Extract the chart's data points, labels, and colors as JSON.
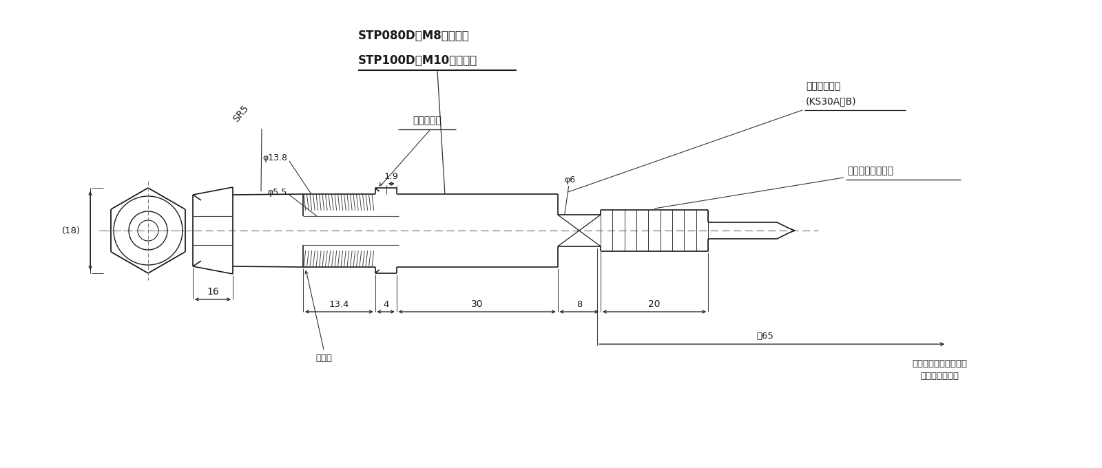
{
  "bg_color": "#ffffff",
  "lc": "#1a1a1a",
  "stp080": "STP080D：M8（並目）",
  "stp100": "STP100D：M10（並目）",
  "boot": "ブーツ保護",
  "cartridge_line1": "カートリッジ",
  "cartridge_line2": "(KS30A／B)",
  "cord": "コードプロテクタ",
  "sukima": "スキマ",
  "space1": "カートリッジ取外しに",
  "space2": "要するスペース",
  "sr5": "SR5",
  "phi138": "φ13.8",
  "phi55": "φ5.5",
  "phi6": "φ6",
  "d18": "(18)",
  "d16": "16",
  "d134": "13.4",
  "d4": "4",
  "d30": "30",
  "d8": "8",
  "d20": "20",
  "d19": "1.9",
  "d65": "終65"
}
